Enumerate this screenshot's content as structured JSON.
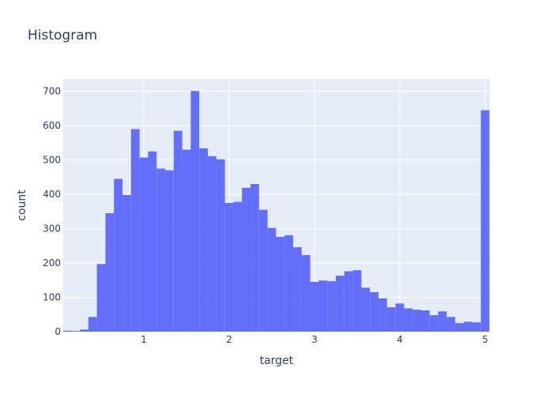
{
  "chart_data": {
    "type": "bar",
    "title": "Histogram",
    "xlabel": "target",
    "ylabel": "count",
    "bin_start": 0.05,
    "bin_width": 0.1,
    "xlim": [
      0.055,
      5.055
    ],
    "ylim": [
      0,
      736
    ],
    "xticks": [
      1,
      2,
      3,
      4,
      5
    ],
    "yticks": [
      0,
      100,
      200,
      300,
      400,
      500,
      600,
      700
    ],
    "grid": true,
    "bar_color": "#636efa",
    "plot_bg": "#e5ecf6",
    "values": [
      3,
      2,
      6,
      43,
      197,
      345,
      445,
      398,
      590,
      507,
      525,
      475,
      470,
      585,
      530,
      701,
      534,
      511,
      502,
      375,
      378,
      419,
      430,
      355,
      302,
      276,
      281,
      246,
      223,
      145,
      149,
      147,
      163,
      176,
      179,
      128,
      115,
      97,
      71,
      82,
      68,
      64,
      62,
      48,
      59,
      43,
      25,
      29,
      27,
      645
    ]
  }
}
